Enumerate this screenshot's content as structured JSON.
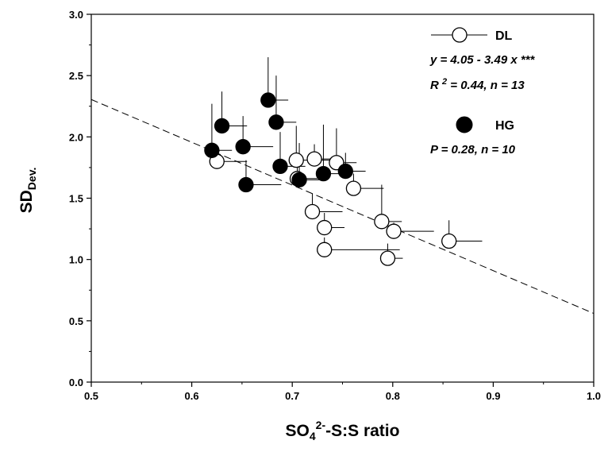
{
  "chart_data": {
    "type": "scatter",
    "xlabel": {
      "base": "SO",
      "sub": "4",
      "sup": "2-",
      "rest": "-S:S ratio"
    },
    "ylabel": {
      "base": "SD",
      "sub": "Dev."
    },
    "xlim": [
      0.5,
      1.0
    ],
    "ylim": [
      0.0,
      3.0
    ],
    "x_ticks": [
      "0.5",
      "0.6",
      "0.7",
      "0.8",
      "0.9",
      "1.0"
    ],
    "y_ticks": [
      "0.0",
      "0.5",
      "1.0",
      "1.5",
      "2.0",
      "2.5",
      "3.0"
    ],
    "grid": false,
    "legend_position": "top-right",
    "series": [
      {
        "name": "DL",
        "marker": "open-circle",
        "color": "#000000",
        "fill": "#ffffff",
        "points": [
          {
            "x": 0.625,
            "y": 1.8,
            "xerr": 0.03,
            "yerr": 0.05
          },
          {
            "x": 0.704,
            "y": 1.81,
            "xerr": 0.035,
            "yerr": 0.28
          },
          {
            "x": 0.722,
            "y": 1.82,
            "xerr": 0.02,
            "yerr": 0.12
          },
          {
            "x": 0.705,
            "y": 1.66,
            "xerr": 0.02,
            "yerr": 0.12
          },
          {
            "x": 0.744,
            "y": 1.79,
            "xerr": 0.02,
            "yerr": 0.28
          },
          {
            "x": 0.761,
            "y": 1.58,
            "xerr": 0.03,
            "yerr": 0.12
          },
          {
            "x": 0.72,
            "y": 1.39,
            "xerr": 0.03,
            "yerr": 0.15
          },
          {
            "x": 0.732,
            "y": 1.26,
            "xerr": 0.02,
            "yerr": 0.12
          },
          {
            "x": 0.732,
            "y": 1.08,
            "xerr": 0.075,
            "yerr": 0.1
          },
          {
            "x": 0.789,
            "y": 1.31,
            "xerr": 0.02,
            "yerr": 0.3
          },
          {
            "x": 0.801,
            "y": 1.23,
            "xerr": 0.04,
            "yerr": 0.07
          },
          {
            "x": 0.795,
            "y": 1.01,
            "xerr": 0.015,
            "yerr": 0.12
          },
          {
            "x": 0.856,
            "y": 1.15,
            "xerr": 0.033,
            "yerr": 0.17
          }
        ],
        "fit": {
          "intercept": 4.05,
          "slope": -3.49
        },
        "stats": {
          "equation": "y = 4.05 - 3.49 x ***",
          "r2_prefix": "R ",
          "r2_sup": "2",
          "r2_rest": " = 0.44, n = 13"
        }
      },
      {
        "name": "HG",
        "marker": "filled-circle",
        "color": "#000000",
        "fill": "#000000",
        "points": [
          {
            "x": 0.62,
            "y": 1.89,
            "xerr": 0.02,
            "yerr": 0.38
          },
          {
            "x": 0.63,
            "y": 2.09,
            "xerr": 0.025,
            "yerr": 0.28
          },
          {
            "x": 0.651,
            "y": 1.92,
            "xerr": 0.03,
            "yerr": 0.25
          },
          {
            "x": 0.654,
            "y": 1.61,
            "xerr": 0.035,
            "yerr": 0.2
          },
          {
            "x": 0.676,
            "y": 2.3,
            "xerr": 0.02,
            "yerr": 0.35
          },
          {
            "x": 0.684,
            "y": 2.12,
            "xerr": 0.02,
            "yerr": 0.38
          },
          {
            "x": 0.688,
            "y": 1.76,
            "xerr": 0.025,
            "yerr": 0.28
          },
          {
            "x": 0.707,
            "y": 1.65,
            "xerr": 0.02,
            "yerr": 0.3
          },
          {
            "x": 0.731,
            "y": 1.7,
            "xerr": 0.02,
            "yerr": 0.4
          },
          {
            "x": 0.753,
            "y": 1.72,
            "xerr": 0.02,
            "yerr": 0.15
          }
        ],
        "stats": {
          "text": "P = 0.28, n = 10"
        }
      }
    ]
  }
}
